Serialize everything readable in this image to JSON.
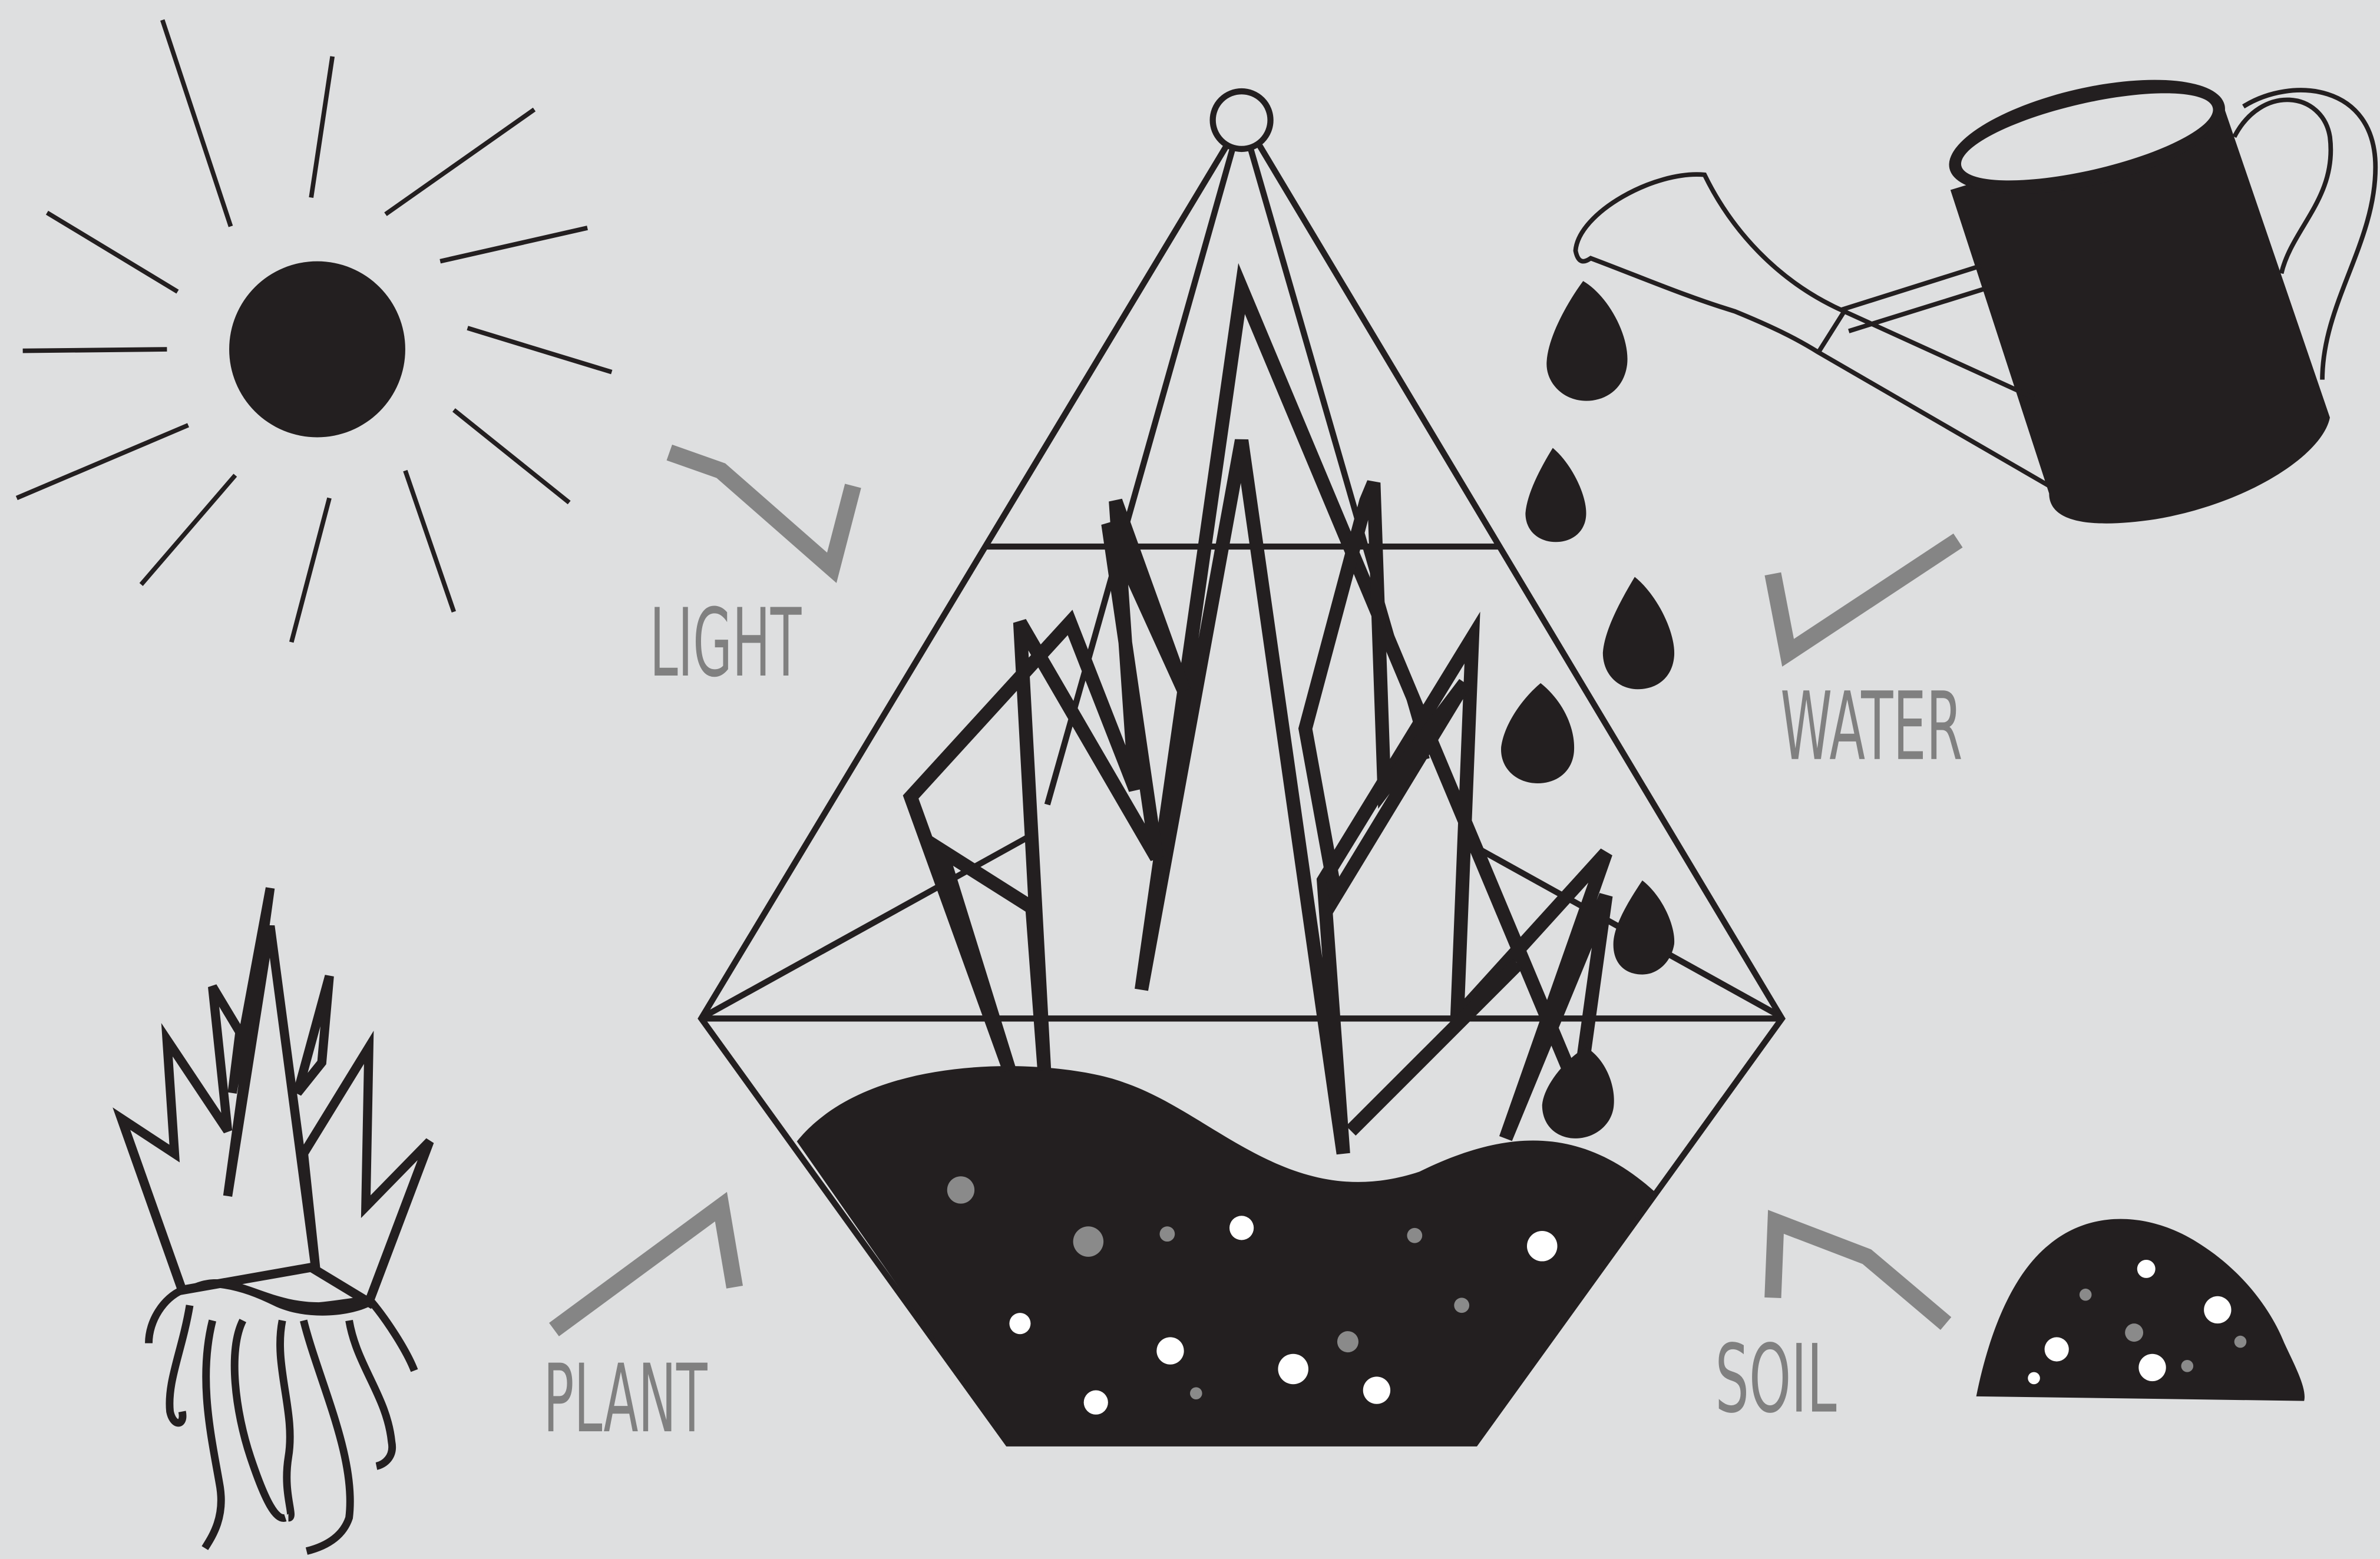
{
  "labels": {
    "light": "LIGHT",
    "water": "WATER",
    "plant": "PLANT",
    "soil": "SOIL"
  }
}
